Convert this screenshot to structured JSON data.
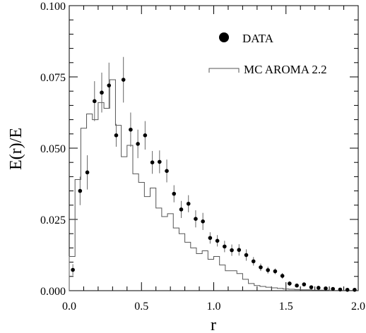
{
  "chart_data": {
    "type": "scatter",
    "title": "",
    "xlabel": "r",
    "ylabel": "E(r)/E",
    "xlim": [
      0.0,
      2.0
    ],
    "ylim": [
      0.0,
      0.1
    ],
    "grid": false,
    "legend_position": "top-right",
    "x_ticks": [
      0.0,
      0.5,
      1.0,
      1.5,
      2.0
    ],
    "x_tick_labels": [
      "0.0",
      "0.5",
      "1.0",
      "1.5",
      "2.0"
    ],
    "y_ticks": [
      0.0,
      0.025,
      0.05,
      0.075,
      0.1
    ],
    "y_tick_labels": [
      "0.000",
      "0.025",
      "0.050",
      "0.075",
      "0.100"
    ],
    "series": [
      {
        "name": "DATA",
        "kind": "points-with-errors",
        "x": [
          0.025,
          0.075,
          0.125,
          0.175,
          0.225,
          0.275,
          0.325,
          0.375,
          0.425,
          0.475,
          0.525,
          0.575,
          0.625,
          0.675,
          0.725,
          0.775,
          0.825,
          0.875,
          0.925,
          0.975,
          1.025,
          1.075,
          1.125,
          1.175,
          1.225,
          1.275,
          1.325,
          1.375,
          1.425,
          1.475,
          1.525,
          1.575,
          1.625,
          1.675,
          1.725,
          1.775,
          1.825,
          1.875,
          1.925,
          1.975
        ],
        "y": [
          0.0073,
          0.035,
          0.0415,
          0.0665,
          0.0695,
          0.072,
          0.0545,
          0.074,
          0.0565,
          0.0515,
          0.0545,
          0.045,
          0.0452,
          0.042,
          0.034,
          0.0285,
          0.0305,
          0.0252,
          0.0243,
          0.0185,
          0.0175,
          0.0155,
          0.0142,
          0.0143,
          0.0125,
          0.0103,
          0.0082,
          0.0072,
          0.0068,
          0.0052,
          0.0025,
          0.0018,
          0.0022,
          0.0012,
          0.001,
          0.0008,
          0.0006,
          0.0004,
          0.0003,
          0.0003
        ],
        "yerr": [
          0.002,
          0.005,
          0.006,
          0.007,
          0.007,
          0.008,
          0.004,
          0.008,
          0.006,
          0.005,
          0.005,
          0.004,
          0.004,
          0.004,
          0.003,
          0.003,
          0.003,
          0.003,
          0.003,
          0.002,
          0.002,
          0.002,
          0.002,
          0.002,
          0.002,
          0.0015,
          0.0013,
          0.0012,
          0.001,
          0.001,
          0.0008,
          0.0006,
          0.0006,
          0.0005,
          0.0004,
          0.0003,
          0.0003,
          0.0002,
          0.0002,
          0.0002
        ],
        "marker": "filled-circle",
        "color": "#000000"
      },
      {
        "name": "MC AROMA 2.2",
        "kind": "step-histogram",
        "bin_edges": [
          0.0,
          0.04,
          0.08,
          0.12,
          0.16,
          0.2,
          0.24,
          0.28,
          0.32,
          0.36,
          0.4,
          0.44,
          0.48,
          0.52,
          0.56,
          0.6,
          0.64,
          0.68,
          0.72,
          0.76,
          0.8,
          0.84,
          0.88,
          0.92,
          0.96,
          1.0,
          1.04,
          1.08,
          1.12,
          1.16,
          1.2,
          1.24,
          1.28,
          1.32,
          1.36,
          1.4,
          1.44,
          1.48,
          1.52,
          1.56,
          1.6,
          1.64,
          1.68,
          1.72,
          1.76,
          1.8,
          1.84,
          1.88,
          1.92,
          1.96,
          2.0
        ],
        "values": [
          0.012,
          0.039,
          0.057,
          0.062,
          0.06,
          0.066,
          0.064,
          0.074,
          0.058,
          0.047,
          0.051,
          0.041,
          0.038,
          0.033,
          0.036,
          0.029,
          0.026,
          0.027,
          0.022,
          0.02,
          0.017,
          0.015,
          0.013,
          0.014,
          0.011,
          0.012,
          0.009,
          0.007,
          0.007,
          0.006,
          0.004,
          0.0025,
          0.0018,
          0.0015,
          0.0012,
          0.001,
          0.0008,
          0.0006,
          0.0005,
          0.0004,
          0.0003,
          0.0003,
          0.0002,
          0.0002,
          0.0002,
          0.0001,
          0.0001,
          0.0001,
          0.0001,
          0.0001
        ],
        "color": "#555555"
      }
    ]
  }
}
